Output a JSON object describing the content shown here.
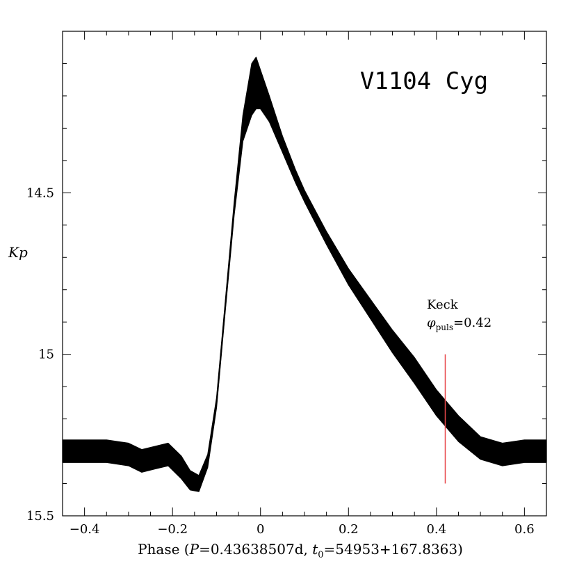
{
  "chart_data": {
    "type": "scatter",
    "title": "V1104 Cyg",
    "xlabel": {
      "prefix": "Phase (",
      "P_symbol": "P",
      "P_value": "=0.43638507d, ",
      "t_symbol": "t",
      "t_sub": "0",
      "t_value": "=54953+167.8363)"
    },
    "ylabel": "Kp",
    "xlim": [
      -0.45,
      0.65
    ],
    "ylim": [
      15.5,
      14.0
    ],
    "x_ticks": [
      {
        "value": -0.4,
        "label": "−0.4"
      },
      {
        "value": -0.2,
        "label": "−0.2"
      },
      {
        "value": 0.0,
        "label": "0"
      },
      {
        "value": 0.2,
        "label": "0.2"
      },
      {
        "value": 0.4,
        "label": "0.4"
      },
      {
        "value": 0.6,
        "label": "0.6"
      }
    ],
    "y_ticks": [
      {
        "value": 14.5,
        "label": "14.5"
      },
      {
        "value": 15.0,
        "label": "15"
      },
      {
        "value": 15.5,
        "label": "15.5"
      }
    ],
    "x_minor_step": 0.05,
    "y_minor_step": 0.1,
    "light_curve": {
      "phase": [
        -0.45,
        -0.4,
        -0.35,
        -0.3,
        -0.27,
        -0.24,
        -0.21,
        -0.18,
        -0.16,
        -0.14,
        -0.12,
        -0.1,
        -0.08,
        -0.06,
        -0.04,
        -0.02,
        -0.01,
        0.0,
        0.02,
        0.05,
        0.08,
        0.1,
        0.15,
        0.2,
        0.25,
        0.3,
        0.35,
        0.4,
        0.45,
        0.5,
        0.55,
        0.6,
        0.65
      ],
      "kp": [
        15.3,
        15.3,
        15.3,
        15.31,
        15.33,
        15.32,
        15.31,
        15.35,
        15.39,
        15.4,
        15.33,
        15.15,
        14.85,
        14.55,
        14.3,
        14.18,
        14.16,
        14.18,
        14.24,
        14.35,
        14.45,
        14.51,
        14.64,
        14.76,
        14.86,
        14.96,
        15.05,
        15.15,
        15.23,
        15.29,
        15.31,
        15.3,
        15.3
      ],
      "scatter_width_kp": [
        0.035,
        0.035,
        0.035,
        0.035,
        0.035,
        0.035,
        0.035,
        0.035,
        0.03,
        0.025,
        0.02,
        0.015,
        0.015,
        0.02,
        0.04,
        0.08,
        0.08,
        0.06,
        0.04,
        0.025,
        0.02,
        0.018,
        0.02,
        0.025,
        0.03,
        0.035,
        0.04,
        0.04,
        0.04,
        0.035,
        0.035,
        0.035,
        0.035
      ]
    },
    "annotation": {
      "line1": "Keck",
      "phi_symbol": "φ",
      "phi_sub": "puls",
      "phi_value": "=0.42",
      "phase": 0.42,
      "kp_range": [
        15.0,
        15.4
      ],
      "color": "#e8474b"
    },
    "ink_color": "#000000",
    "background": "#ffffff"
  }
}
